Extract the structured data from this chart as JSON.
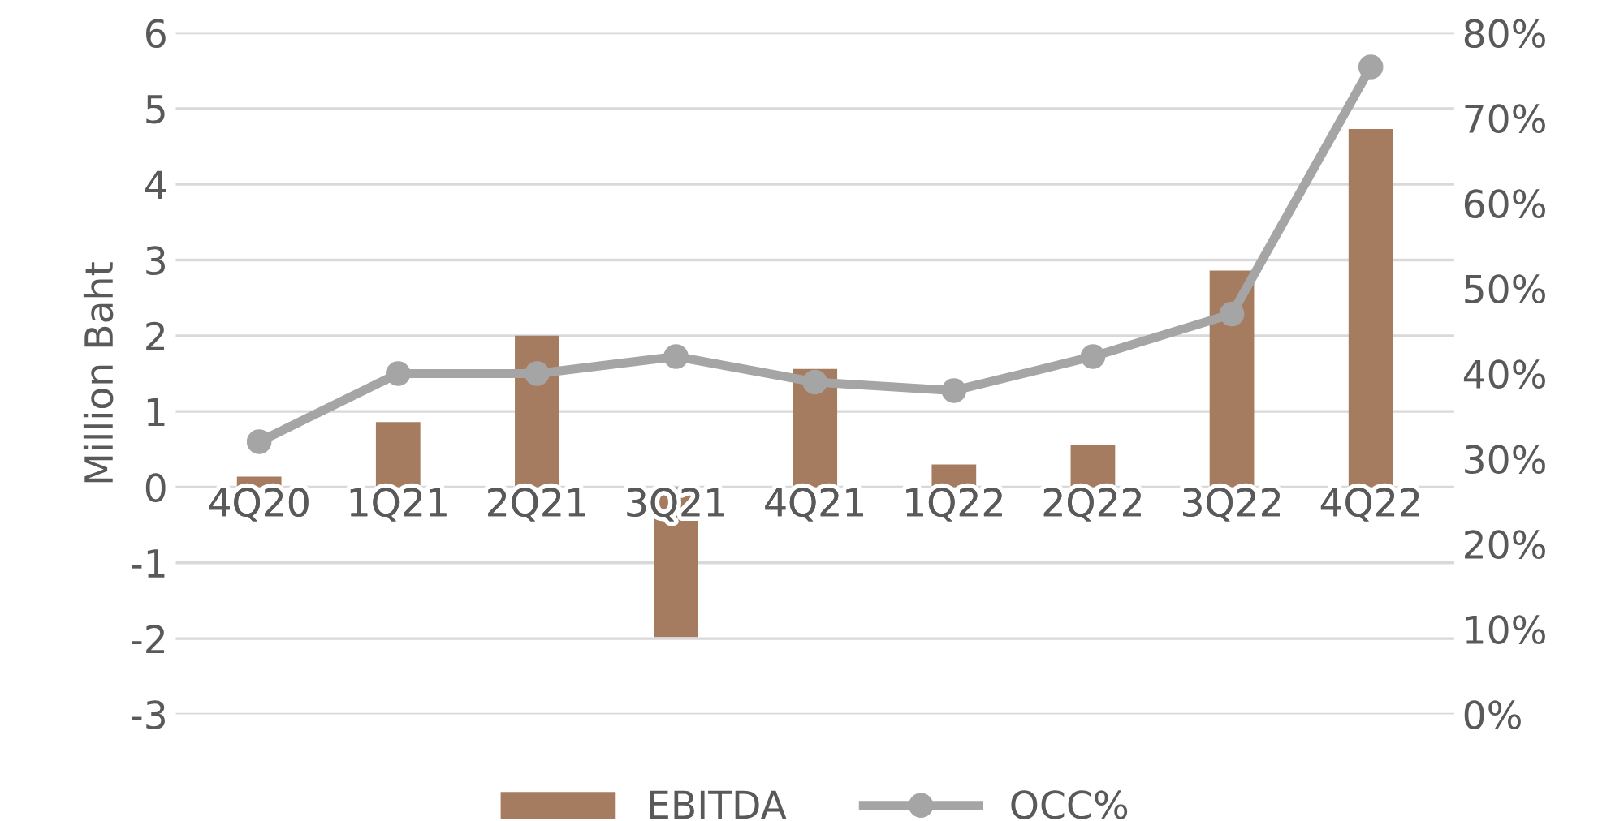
{
  "chart_data": {
    "type": "bar",
    "ylabel": "Million Baht",
    "categories": [
      "4Q20",
      "1Q21",
      "2Q21",
      "3Q21",
      "4Q21",
      "1Q22",
      "2Q22",
      "3Q22",
      "4Q22"
    ],
    "series": [
      {
        "name": "EBITDA",
        "color": "#a67c61",
        "values": [
          0.14,
          0.86,
          2.0,
          -1.98,
          1.56,
          0.3,
          0.55,
          2.86,
          4.73
        ]
      },
      {
        "name": "OCC%",
        "type": "line",
        "axis": "y2",
        "color": "#a5a5a5",
        "marker": "circle",
        "values": [
          32,
          40,
          40,
          42,
          39,
          38,
          42,
          47,
          76
        ]
      }
    ],
    "ylim": [
      -3,
      6
    ],
    "yticks": [
      -3,
      -2,
      -1,
      0,
      1,
      2,
      3,
      4,
      5,
      6
    ],
    "y2lim": [
      0,
      80
    ],
    "y2ticks": [
      {
        "value": 0,
        "label": "0%"
      },
      {
        "value": 10,
        "label": "10%"
      },
      {
        "value": 20,
        "label": "20%"
      },
      {
        "value": 30,
        "label": "30%"
      },
      {
        "value": 40,
        "label": "40%"
      },
      {
        "value": 50,
        "label": "50%"
      },
      {
        "value": 60,
        "label": "60%"
      },
      {
        "value": 70,
        "label": "70%"
      },
      {
        "value": 80,
        "label": "80%"
      }
    ],
    "grid": "y",
    "legend": "bottom"
  }
}
